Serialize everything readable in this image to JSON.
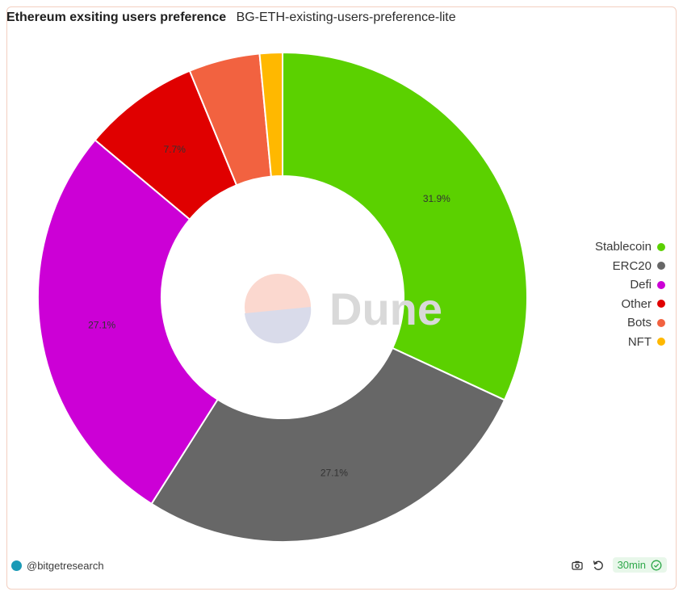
{
  "header": {
    "title": "Ethereum exsiting users preference",
    "subtitle": "BG-ETH-existing-users-preference-lite"
  },
  "watermark": {
    "text": "Dune"
  },
  "chart_data": {
    "type": "pie",
    "donut": true,
    "title": "Ethereum exsiting users preference",
    "legend_position": "right",
    "series": [
      {
        "name": "Stablecoin",
        "value": 31.9,
        "label": "31.9%",
        "color": "#5bd100"
      },
      {
        "name": "ERC20",
        "value": 27.1,
        "label": "27.1%",
        "color": "#676767"
      },
      {
        "name": "Defi",
        "value": 27.1,
        "label": "27.1%",
        "color": "#cc00d6"
      },
      {
        "name": "Other",
        "value": 7.7,
        "label": "7.7%",
        "color": "#e00000"
      },
      {
        "name": "Bots",
        "value": 4.7,
        "label": "",
        "color": "#f26240"
      },
      {
        "name": "NFT",
        "value": 1.5,
        "label": "",
        "color": "#ffb800"
      }
    ]
  },
  "footer": {
    "author": "@bitgetresearch",
    "refresh": "30min",
    "icons": [
      "camera-icon",
      "refresh-icon",
      "check-circle-icon"
    ]
  }
}
